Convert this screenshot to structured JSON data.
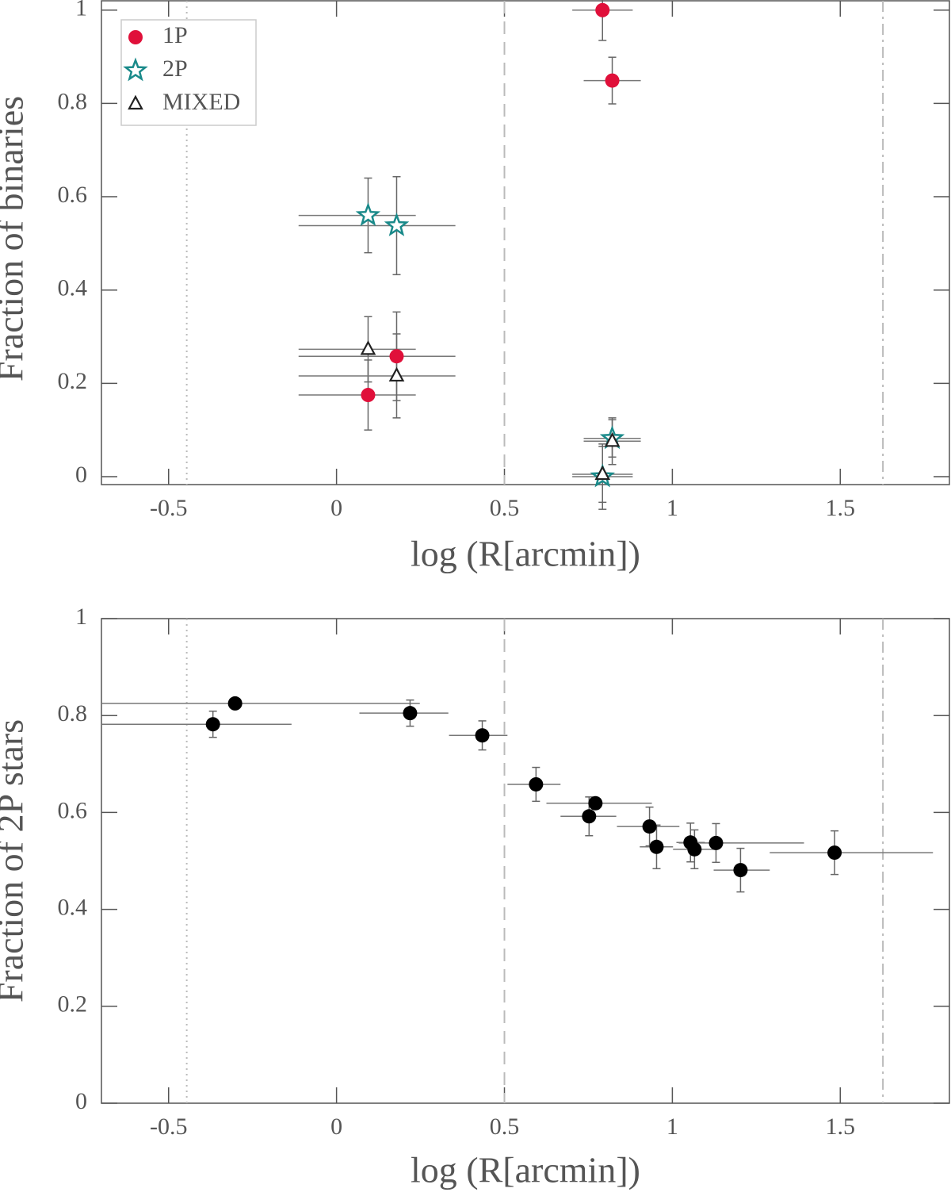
{
  "chart_data": [
    {
      "type": "scatter",
      "xlabel": "log (R[arcmin])",
      "ylabel": "Fraction of binaries",
      "xlim": [
        -0.7,
        1.825
      ],
      "ylim": [
        -0.017,
        1.02
      ],
      "xticks": [
        -0.5,
        0,
        0.5,
        1,
        1.5
      ],
      "yticks": [
        0,
        0.2,
        0.4,
        0.6,
        0.8,
        1
      ],
      "legend": "upper left",
      "vlines": [
        {
          "x": -0.446,
          "style": "dotted"
        },
        {
          "x": 0.5,
          "style": "dashed"
        },
        {
          "x": 1.627,
          "style": "dashdot"
        }
      ],
      "series": [
        {
          "name": "1P",
          "color": "#e0103a",
          "marker": "circle",
          "x": [
            0.792,
            0.821,
            0.179,
            0.094
          ],
          "values": [
            1.0,
            0.849,
            0.258,
            0.175
          ],
          "x_low": [
            0.702,
            0.736,
            -0.113,
            -0.113
          ],
          "x_high": [
            0.882,
            0.906,
            0.354,
            0.236
          ],
          "yerr": [
            0.065,
            0.05,
            0.095,
            0.075
          ]
        },
        {
          "name": "2P",
          "color": "#1a8a8a",
          "marker": "star",
          "x": [
            0.094,
            0.179,
            0.821,
            0.792
          ],
          "values": [
            0.56,
            0.538,
            0.082,
            0.0
          ],
          "x_low": [
            -0.113,
            -0.113,
            0.736,
            0.702
          ],
          "x_high": [
            0.236,
            0.354,
            0.906,
            0.882
          ],
          "yerr": [
            0.08,
            0.105,
            0.04,
            0.07
          ]
        },
        {
          "name": "MIXED",
          "color": "#222222",
          "marker": "triangle",
          "x": [
            0.094,
            0.179,
            0.821,
            0.792
          ],
          "values": [
            0.273,
            0.216,
            0.076,
            0.005
          ],
          "x_low": [
            -0.113,
            -0.113,
            0.736,
            0.702
          ],
          "x_high": [
            0.236,
            0.354,
            0.906,
            0.882
          ],
          "yerr": [
            0.07,
            0.09,
            0.05,
            0.06
          ]
        }
      ]
    },
    {
      "type": "scatter",
      "xlabel": "log (R[arcmin])",
      "ylabel": "Fraction of 2P stars",
      "xlim": [
        -0.7,
        1.825
      ],
      "ylim": [
        0,
        1
      ],
      "xticks": [
        -0.5,
        0,
        0.5,
        1,
        1.5
      ],
      "yticks": [
        0,
        0.2,
        0.4,
        0.6,
        0.8,
        1
      ],
      "vlines": [
        {
          "x": -0.446,
          "style": "dotted"
        },
        {
          "x": 0.5,
          "style": "dashed"
        },
        {
          "x": 1.627,
          "style": "dashdot"
        }
      ],
      "series": [
        {
          "color": "#000000",
          "marker": "circle",
          "x": [
            -0.368,
            -0.302,
            0.219,
            0.434,
            0.594,
            0.752,
            0.771,
            0.932,
            0.953,
            1.054,
            1.066,
            1.13,
            1.203,
            1.483
          ],
          "values": [
            0.782,
            0.825,
            0.805,
            0.759,
            0.658,
            0.592,
            0.619,
            0.571,
            0.529,
            0.538,
            0.524,
            0.537,
            0.481,
            0.517
          ],
          "x_low": [
            -0.7,
            -0.7,
            0.068,
            0.335,
            0.509,
            0.667,
            0.625,
            0.835,
            0.903,
            1.012,
            1.002,
            1.019,
            1.123,
            1.29
          ],
          "x_high": [
            -0.134,
            0.248,
            0.333,
            0.509,
            0.667,
            0.833,
            0.939,
            1.021,
            1.002,
            1.097,
            1.132,
            1.392,
            1.29,
            1.776
          ],
          "yerr": [
            0.027,
            0.0,
            0.027,
            0.03,
            0.035,
            0.04,
            0.012,
            0.04,
            0.045,
            0.04,
            0.04,
            0.04,
            0.045,
            0.045
          ]
        }
      ]
    }
  ]
}
